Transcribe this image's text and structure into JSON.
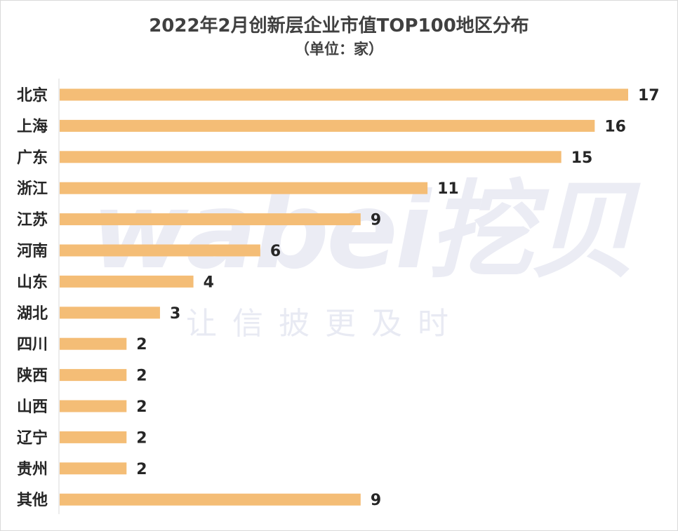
{
  "chart_data": {
    "type": "bar",
    "orientation": "horizontal",
    "title": "2022年2月创新层企业市值TOP100地区分布",
    "subtitle": "（单位：家）",
    "categories": [
      "北京",
      "上海",
      "广东",
      "浙江",
      "江苏",
      "河南",
      "山东",
      "湖北",
      "四川",
      "陕西",
      "山西",
      "辽宁",
      "贵州",
      "其他"
    ],
    "values": [
      17,
      16,
      15,
      11,
      9,
      6,
      4,
      3,
      2,
      2,
      2,
      2,
      2,
      9
    ],
    "xlim": [
      0,
      17
    ],
    "grid": false,
    "legend": "none",
    "bar_color": "#f4bd76",
    "axis_color": "#d9d9d9"
  },
  "watermark": {
    "logo_text": "wabei挖贝",
    "slogan": "让信披更及时",
    "color": "#2b3a8f"
  }
}
